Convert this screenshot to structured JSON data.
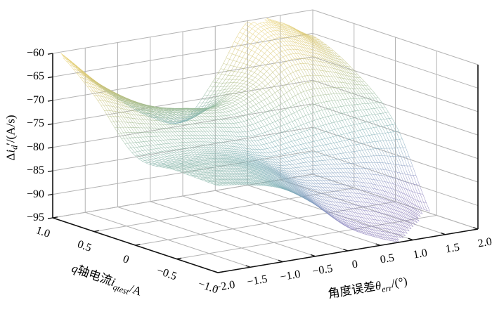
{
  "figure": {
    "background": "#ffffff",
    "grid_color": "#b4b4b4",
    "axis_color": "#111111"
  },
  "axes": {
    "z": {
      "label": {
        "pre": "Δ",
        "var": "i",
        "sub": "d",
        "post": "′/(A/s)"
      },
      "tick_labels": [
        "−60",
        "−65",
        "−70",
        "−75",
        "−80",
        "−85",
        "−90",
        "−95"
      ],
      "tick_values": [
        -60,
        -65,
        -70,
        -75,
        -80,
        -85,
        -90,
        -95
      ],
      "lim": [
        -95,
        -60
      ]
    },
    "x": {
      "label": {
        "pre": "角度误差",
        "var": "θ",
        "sub": "err",
        "post": "/(°)"
      },
      "tick_labels": [
        "−2.0",
        "−1.5",
        "−1.0",
        "−0.5",
        "0",
        "0.5",
        "1.0",
        "1.5",
        "2.0"
      ],
      "tick_values": [
        -2,
        -1.5,
        -1,
        -0.5,
        0,
        0.5,
        1,
        1.5,
        2
      ],
      "lim": [
        -2,
        2
      ]
    },
    "y": {
      "label": {
        "pre": "",
        "var": "q",
        "mid": "轴电流",
        "var2": "i",
        "sub": "qtest",
        "post": "/A"
      },
      "tick_labels": [
        "1.0",
        "0.5",
        "0",
        "−0.5",
        "−1.0"
      ],
      "tick_values": [
        1,
        0.5,
        0,
        -0.5,
        -1
      ],
      "lim": [
        -1,
        1
      ]
    }
  },
  "chart_data": {
    "type": "surface3d-wireframe",
    "title": "",
    "x_name": "角度误差θerr/(°)",
    "y_name": "q轴电流iqtest/A",
    "z_name": "Δid′/(A/s)",
    "x": [
      -2,
      -1.5,
      -1,
      -0.5,
      0,
      0.5,
      1,
      1.5,
      2
    ],
    "y": [
      -1,
      -0.5,
      0,
      0.5,
      1
    ],
    "z_grid": [
      [
        -76.5,
        -77.5,
        -79.5,
        -84.0,
        -90.0,
        -93.5,
        -96.0,
        -99.0,
        -102.0
      ],
      [
        -76.2,
        -76.7,
        -77.8,
        -80.5,
        -84.5,
        -86.5,
        -88.5,
        -92.0,
        -97.0
      ],
      [
        -76.0,
        -76.0,
        -76.5,
        -78.0,
        -80.0,
        -79.5,
        -79.0,
        -78.5,
        -78.5
      ],
      [
        -66.0,
        -69.0,
        -71.5,
        -72.5,
        -73.0,
        -70.0,
        -65.5,
        -67.0,
        -70.0
      ],
      [
        -59.0,
        -66.0,
        -72.0,
        -77.0,
        -79.0,
        -71.0,
        -60.2,
        -61.5,
        -65.5
      ]
    ],
    "zlim": [
      -95,
      -60
    ],
    "clip_to_zlim": true,
    "mesh_density": {
      "n_theta": 97,
      "n_iq": 49
    },
    "colormap": [
      [
        0.0,
        "#8a7ab5"
      ],
      [
        0.15,
        "#9088c2"
      ],
      [
        0.3,
        "#85a0c2"
      ],
      [
        0.45,
        "#7cafb4"
      ],
      [
        0.6,
        "#8fb89c"
      ],
      [
        0.72,
        "#b5bf85"
      ],
      [
        0.85,
        "#d9c773"
      ],
      [
        1.0,
        "#ead47a"
      ]
    ],
    "legend": null,
    "grid_on": true
  }
}
